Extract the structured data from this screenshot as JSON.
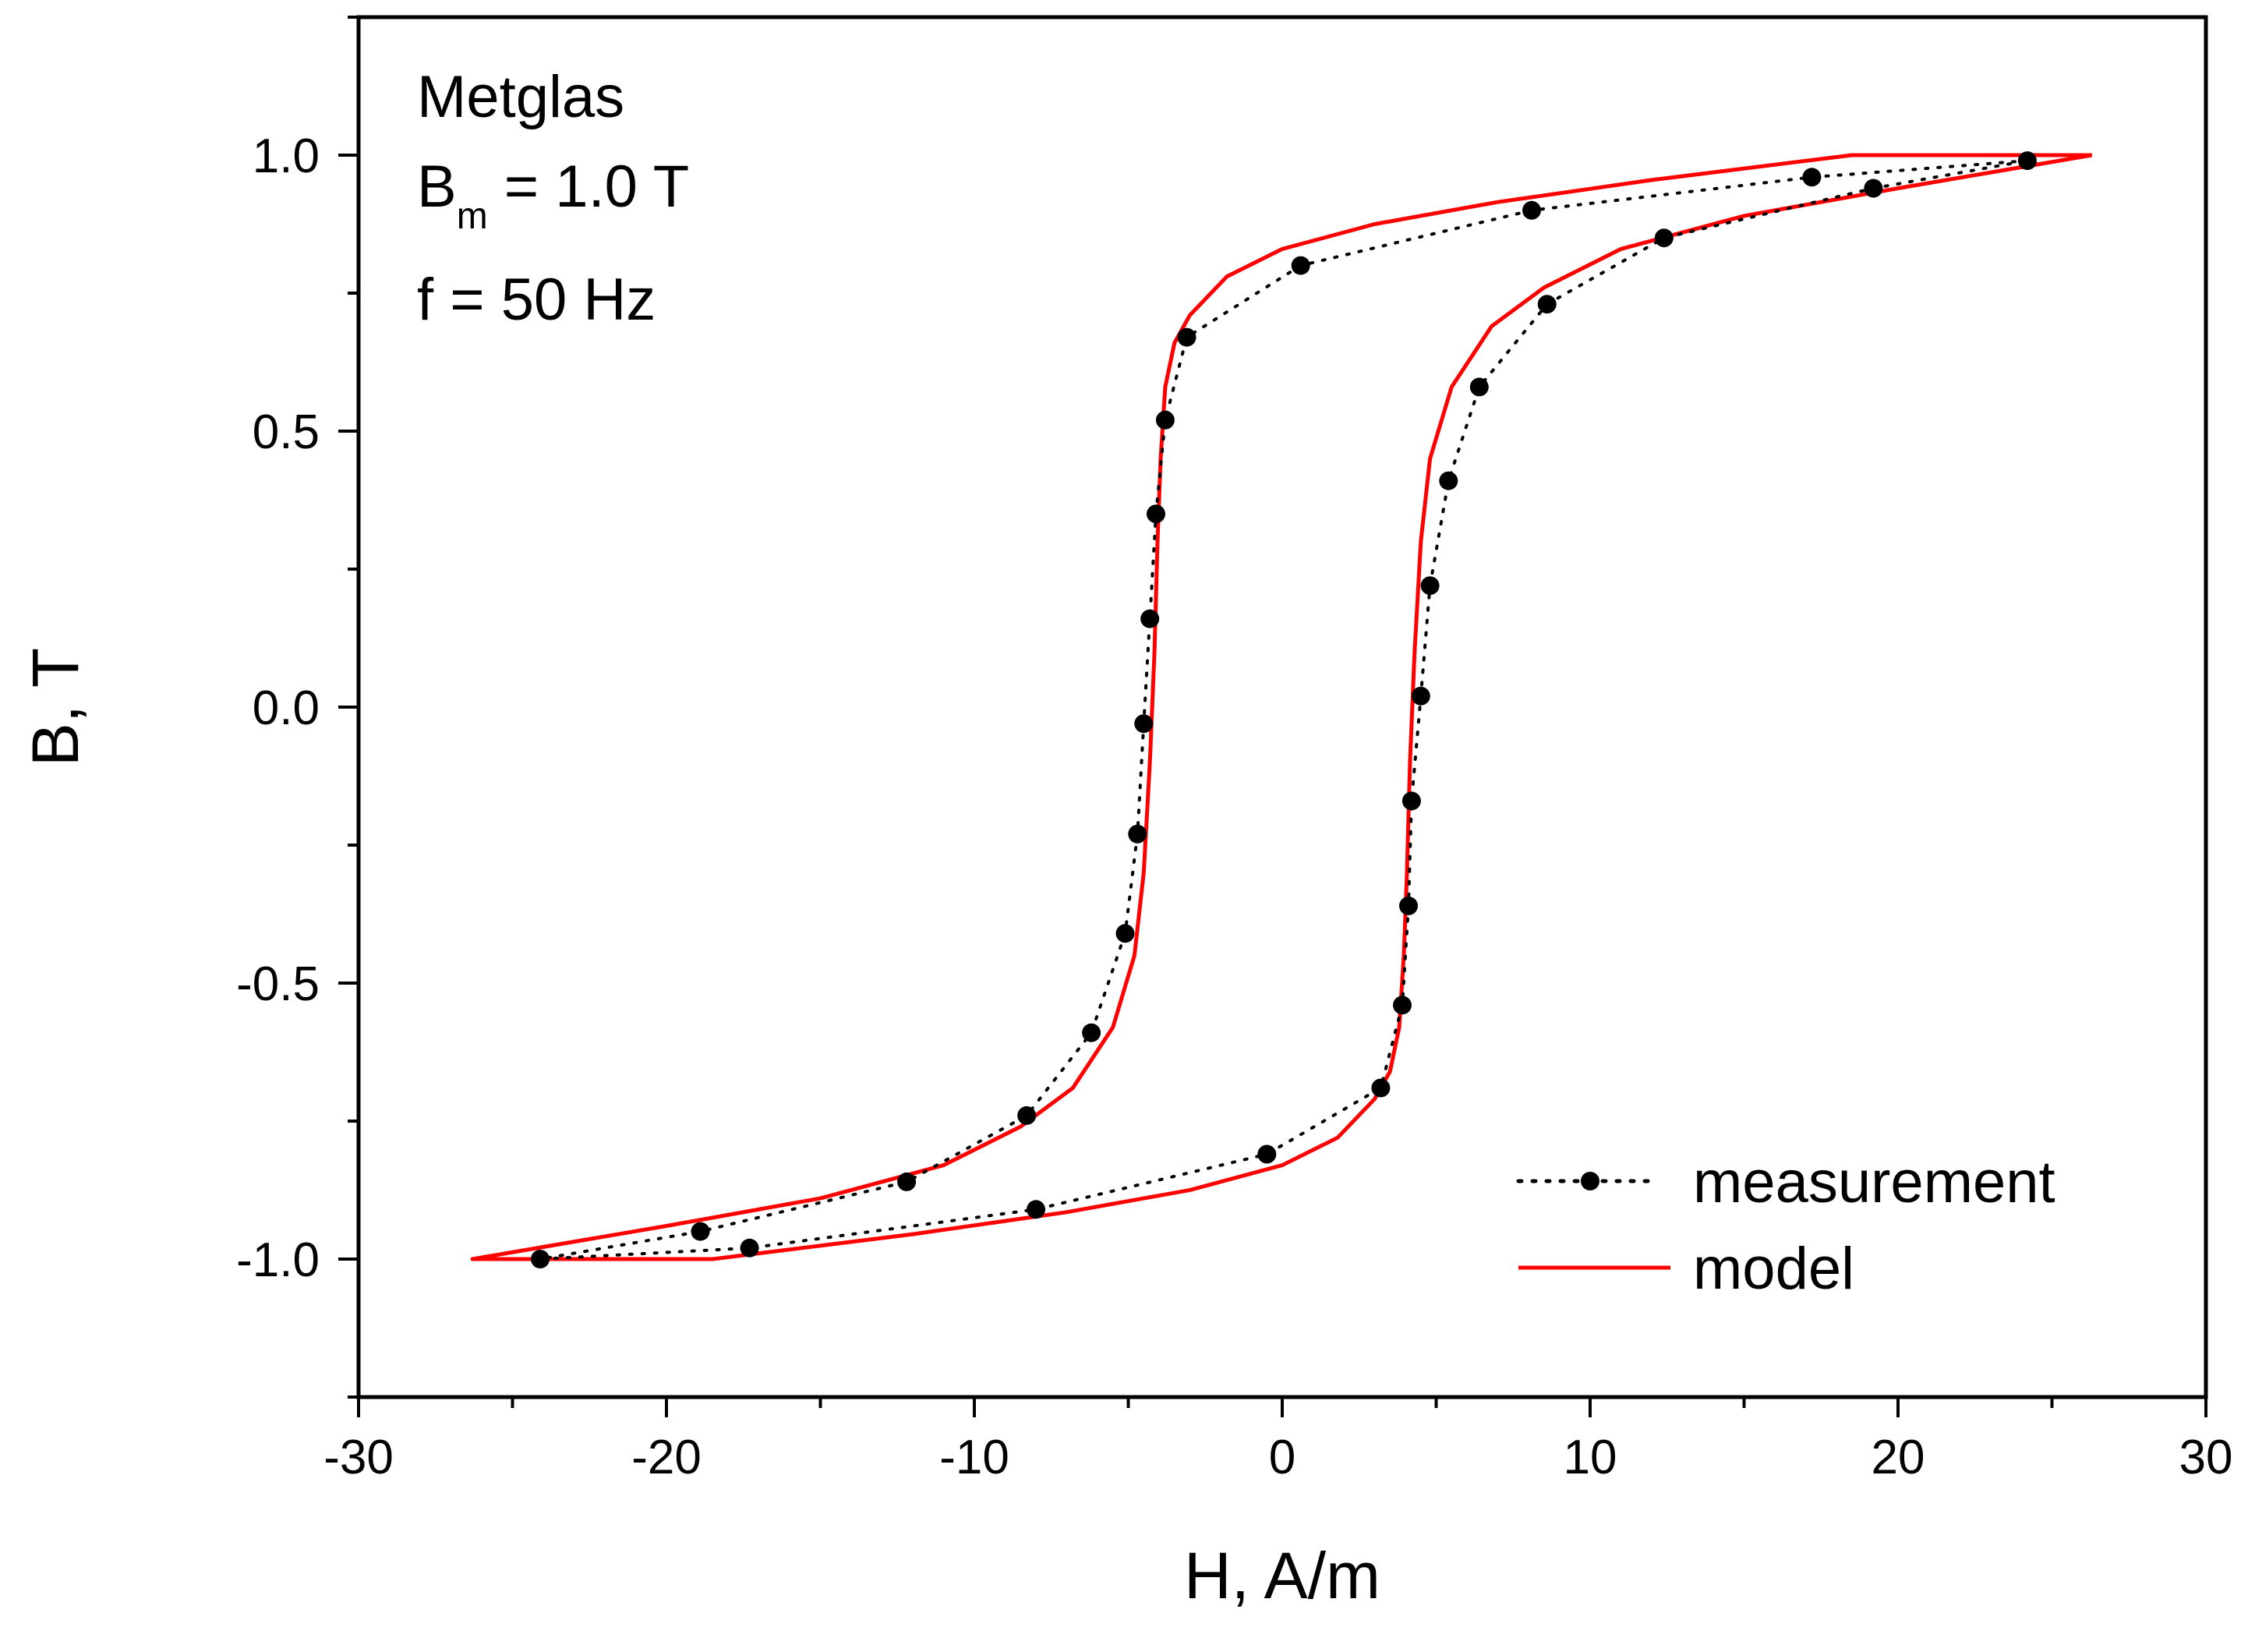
{
  "chart_data": {
    "type": "line",
    "title": "",
    "xlabel": "H, A/m",
    "ylabel": "B, T",
    "xlim": [
      -30,
      30
    ],
    "ylim": [
      -1.25,
      1.25
    ],
    "grid": false,
    "x_ticks": [
      -30,
      -20,
      -10,
      0,
      10,
      20,
      30
    ],
    "x_tick_labels": [
      "-30",
      "-20",
      "-10",
      "0",
      "10",
      "20",
      "30"
    ],
    "y_ticks": [
      -1.0,
      -0.5,
      0.0,
      0.5,
      1.0
    ],
    "y_tick_labels": [
      "-1.0",
      "-0.5",
      "0.0",
      "0.5",
      "1.0"
    ],
    "annotation": {
      "material": "Metglas",
      "bm_prefix": "B",
      "bm_sub": "m",
      "bm_value": " = 1.0 T",
      "frequency": "f = 50 Hz"
    },
    "legend": {
      "position": "bottom-right"
    },
    "series": [
      {
        "name": "measurement",
        "style": "dotted-with-markers",
        "color": "#000000",
        "points": [
          [
            24.2,
            0.99
          ],
          [
            17.2,
            0.96
          ],
          [
            8.1,
            0.9
          ],
          [
            0.6,
            0.8
          ],
          [
            -3.1,
            0.67
          ],
          [
            -3.8,
            0.52
          ],
          [
            -4.1,
            0.35
          ],
          [
            -4.3,
            0.16
          ],
          [
            -4.5,
            -0.03
          ],
          [
            -4.7,
            -0.23
          ],
          [
            -5.1,
            -0.41
          ],
          [
            -6.2,
            -0.59
          ],
          [
            -8.3,
            -0.74
          ],
          [
            -12.2,
            -0.86
          ],
          [
            -18.9,
            -0.95
          ],
          [
            -24.1,
            -1.0
          ],
          [
            -17.3,
            -0.98
          ],
          [
            -8.0,
            -0.91
          ],
          [
            -0.5,
            -0.81
          ],
          [
            3.2,
            -0.69
          ],
          [
            3.9,
            -0.54
          ],
          [
            4.1,
            -0.36
          ],
          [
            4.2,
            -0.17
          ],
          [
            4.5,
            0.02
          ],
          [
            4.8,
            0.22
          ],
          [
            5.4,
            0.41
          ],
          [
            6.4,
            0.58
          ],
          [
            8.6,
            0.73
          ],
          [
            12.4,
            0.85
          ],
          [
            19.2,
            0.94
          ],
          [
            24.2,
            0.99
          ]
        ]
      },
      {
        "name": "model",
        "style": "solid",
        "color": "#ff0000",
        "points": [
          [
            26.3,
            1.0
          ],
          [
            18.5,
            1.0
          ],
          [
            12.0,
            0.955
          ],
          [
            7.0,
            0.915
          ],
          [
            3.0,
            0.875
          ],
          [
            0.0,
            0.83
          ],
          [
            -1.8,
            0.78
          ],
          [
            -3.0,
            0.71
          ],
          [
            -3.5,
            0.66
          ],
          [
            -3.8,
            0.58
          ],
          [
            -3.95,
            0.45
          ],
          [
            -4.05,
            0.3
          ],
          [
            -4.15,
            0.1
          ],
          [
            -4.3,
            -0.1
          ],
          [
            -4.5,
            -0.3
          ],
          [
            -4.8,
            -0.45
          ],
          [
            -5.5,
            -0.58
          ],
          [
            -6.8,
            -0.69
          ],
          [
            -8.5,
            -0.76
          ],
          [
            -11.0,
            -0.83
          ],
          [
            -15.0,
            -0.89
          ],
          [
            -20.0,
            -0.94
          ],
          [
            -26.3,
            -1.0
          ],
          [
            -18.5,
            -1.0
          ],
          [
            -12.0,
            -0.955
          ],
          [
            -7.0,
            -0.915
          ],
          [
            -3.0,
            -0.875
          ],
          [
            0.0,
            -0.83
          ],
          [
            1.8,
            -0.78
          ],
          [
            3.0,
            -0.71
          ],
          [
            3.5,
            -0.66
          ],
          [
            3.8,
            -0.58
          ],
          [
            3.95,
            -0.45
          ],
          [
            4.05,
            -0.3
          ],
          [
            4.15,
            -0.1
          ],
          [
            4.3,
            0.1
          ],
          [
            4.5,
            0.3
          ],
          [
            4.8,
            0.45
          ],
          [
            5.5,
            0.58
          ],
          [
            6.8,
            0.69
          ],
          [
            8.5,
            0.76
          ],
          [
            11.0,
            0.83
          ],
          [
            15.0,
            0.89
          ],
          [
            20.0,
            0.94
          ],
          [
            26.3,
            1.0
          ]
        ]
      }
    ]
  }
}
